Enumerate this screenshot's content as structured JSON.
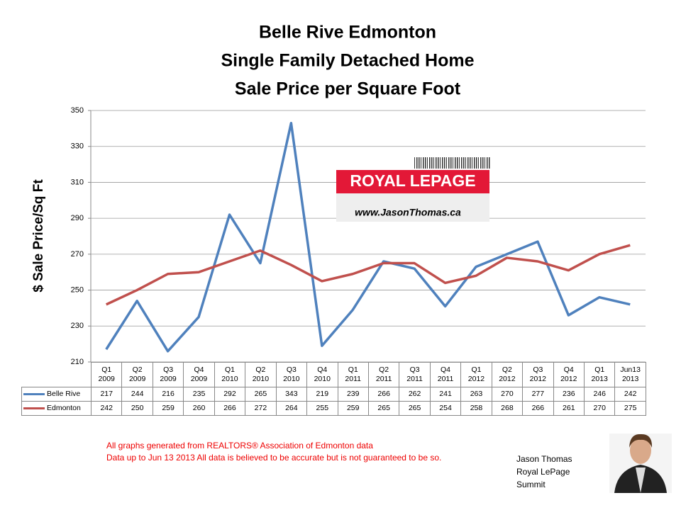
{
  "chart_data": {
    "type": "line",
    "title": [
      "Belle Rive Edmonton",
      "Single Family Detached Home",
      "Sale Price per Square Foot"
    ],
    "y_label": "$ Sale Price/Sq Ft",
    "categories": [
      "Q1 2009",
      "Q2 2009",
      "Q3 2009",
      "Q4 2009",
      "Q1 2010",
      "Q2 2010",
      "Q3 2010",
      "Q4 2010",
      "Q1 2011",
      "Q2 2011",
      "Q3 2011",
      "Q4 2011",
      "Q1 2012",
      "Q2 2012",
      "Q3 2012",
      "Q4 2012",
      "Q1 2013",
      "Jun13 2013"
    ],
    "series": [
      {
        "name": "Belle Rive",
        "color": "#4f81bd",
        "values": [
          217,
          244,
          216,
          235,
          292,
          265,
          343,
          219,
          239,
          266,
          262,
          241,
          263,
          270,
          277,
          236,
          246,
          242
        ]
      },
      {
        "name": "Edmonton",
        "color": "#c0504d",
        "values": [
          242,
          250,
          259,
          260,
          266,
          272,
          264,
          255,
          259,
          265,
          265,
          254,
          258,
          268,
          266,
          261,
          270,
          275
        ]
      }
    ],
    "ylim": [
      210,
      350
    ],
    "yticks": [
      210,
      230,
      250,
      270,
      290,
      310,
      330,
      350
    ],
    "grid": true
  },
  "logo": {
    "name": "ROYAL LEPAGE",
    "url": "www.JasonThomas.ca"
  },
  "notes": [
    "All graphs generated from REALTORS® Association of Edmonton data",
    "Data up to  Jun 13 2013  All data is believed to be accurate but is not guaranteed to be so."
  ],
  "signature": [
    "Jason Thomas",
    "Royal LePage",
    "Summit"
  ]
}
